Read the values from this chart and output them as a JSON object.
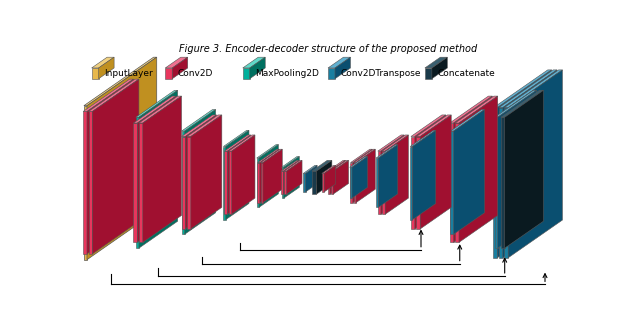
{
  "title": "Figure 3. Encoder-decoder structure of the proposed method",
  "bg": "#ffffff",
  "colors": {
    "gold_face": "#E8B84B",
    "gold_top": "#F0D080",
    "gold_side": "#C09020",
    "red_face": "#E8365D",
    "red_top": "#F07090",
    "red_side": "#A01030",
    "teal_face": "#00B09B",
    "teal_top": "#60D8C8",
    "teal_side": "#007060",
    "blue_face": "#1A7FA0",
    "blue_top": "#60B0D0",
    "blue_side": "#0A4F70",
    "dark_face": "#1A3A4A",
    "dark_top": "#3A6070",
    "dark_side": "#0A1A20"
  },
  "legend_items": [
    "InputLayer",
    "Conv2D",
    "MaxPooling2D",
    "Conv2DTranspose",
    "Concatenate"
  ],
  "legend_faces": [
    "#E8B84B",
    "#E8365D",
    "#00B09B",
    "#1A7FA0",
    "#1A3A4A"
  ],
  "legend_tops": [
    "#F0D080",
    "#F07090",
    "#60D8C8",
    "#60B0D0",
    "#3A6070"
  ],
  "legend_sides": [
    "#C09020",
    "#A01030",
    "#007060",
    "#0A4F70",
    "#0A1A20"
  ]
}
